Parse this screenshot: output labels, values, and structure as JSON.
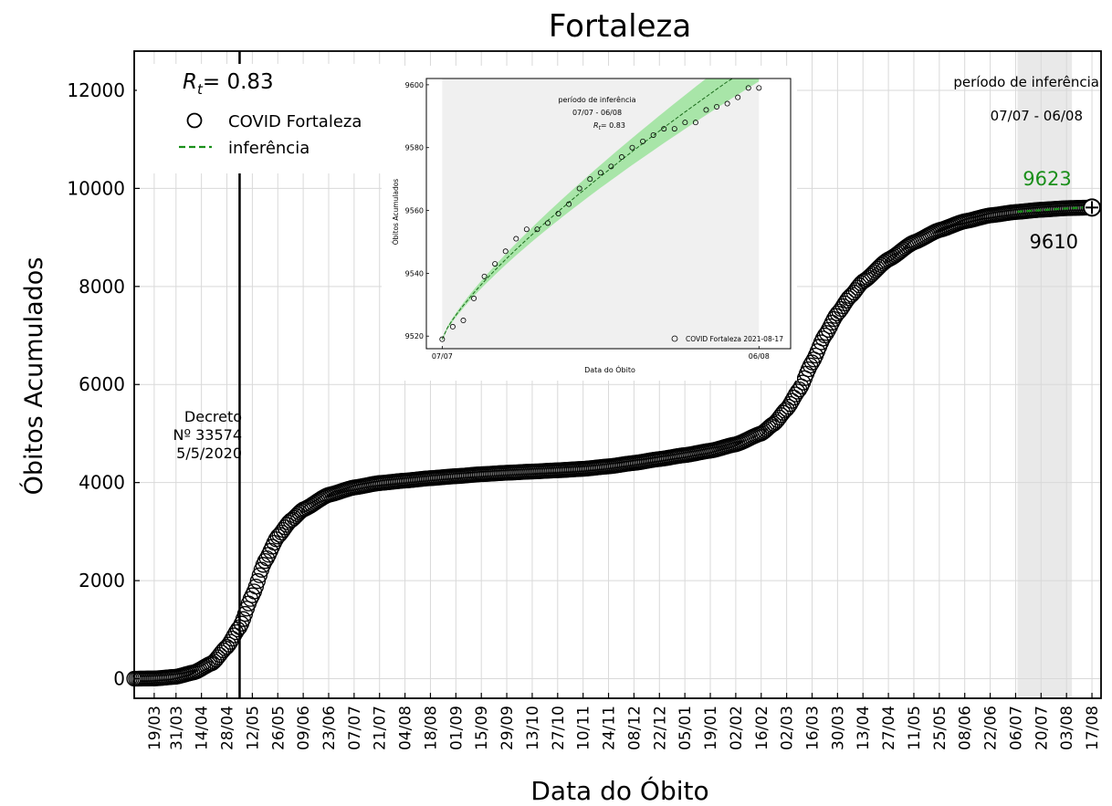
{
  "chart_data": {
    "type": "scatter",
    "title": "Fortaleza",
    "xlabel": "Data do Óbito",
    "ylabel": "Óbitos Acumulados",
    "ylim": [
      -400,
      12800
    ],
    "yticks": [
      0,
      2000,
      4000,
      6000,
      8000,
      10000,
      12000
    ],
    "x_range_days": [
      "2020-03-08",
      "2021-08-22"
    ],
    "xtick_labels": [
      "19/03",
      "31/03",
      "14/04",
      "28/04",
      "12/05",
      "26/05",
      "09/06",
      "23/06",
      "07/07",
      "21/07",
      "04/08",
      "18/08",
      "01/09",
      "15/09",
      "29/09",
      "13/10",
      "27/10",
      "10/11",
      "24/11",
      "08/12",
      "22/12",
      "05/01",
      "19/01",
      "02/02",
      "16/02",
      "02/03",
      "16/03",
      "30/03",
      "13/04",
      "27/04",
      "11/05",
      "25/05",
      "08/06",
      "22/06",
      "06/07",
      "20/07",
      "03/08",
      "17/08"
    ],
    "xtick_dates": [
      "2020-03-19",
      "2020-03-31",
      "2020-04-14",
      "2020-04-28",
      "2020-05-12",
      "2020-05-26",
      "2020-06-09",
      "2020-06-23",
      "2020-07-07",
      "2020-07-21",
      "2020-08-04",
      "2020-08-18",
      "2020-09-01",
      "2020-09-15",
      "2020-09-29",
      "2020-10-13",
      "2020-10-27",
      "2020-11-10",
      "2020-11-24",
      "2020-12-08",
      "2020-12-22",
      "2021-01-05",
      "2021-01-19",
      "2021-02-02",
      "2021-02-16",
      "2021-03-02",
      "2021-03-16",
      "2021-03-30",
      "2021-04-13",
      "2021-04-27",
      "2021-05-11",
      "2021-05-25",
      "2021-06-08",
      "2021-06-22",
      "2021-07-06",
      "2021-07-20",
      "2021-08-03",
      "2021-08-17"
    ],
    "grid": true,
    "legend": {
      "placement": "upper-left",
      "entries": [
        {
          "label": "COVID Fortaleza",
          "marker": "open-circle"
        },
        {
          "label": "inferência",
          "marker": "dashed-line",
          "color": "#1a8f1a"
        }
      ]
    },
    "rt_label_base": "R",
    "rt_label_sub": "t",
    "rt_label_value": "= 0.83",
    "decree": {
      "date": "2020-05-05",
      "lines": [
        "Decreto",
        "Nº 33574",
        "5/5/2020"
      ]
    },
    "inference_period": {
      "start": "2021-07-07",
      "end": "2021-08-06",
      "shade_color": "#e9e9e9",
      "label": "período de inferência",
      "range_label": "07/07 - 06/08"
    },
    "projection_label": "9623",
    "projection_color": "#1a8f1a",
    "last_value_label": "9610",
    "curve_anchors": [
      [
        "2020-03-08",
        0
      ],
      [
        "2020-03-20",
        6
      ],
      [
        "2020-03-31",
        40
      ],
      [
        "2020-04-10",
        130
      ],
      [
        "2020-04-20",
        320
      ],
      [
        "2020-04-28",
        650
      ],
      [
        "2020-05-05",
        1050
      ],
      [
        "2020-05-12",
        1700
      ],
      [
        "2020-05-19",
        2400
      ],
      [
        "2020-05-26",
        2900
      ],
      [
        "2020-06-02",
        3220
      ],
      [
        "2020-06-09",
        3450
      ],
      [
        "2020-06-23",
        3750
      ],
      [
        "2020-07-07",
        3900
      ],
      [
        "2020-07-21",
        3990
      ],
      [
        "2020-08-04",
        4040
      ],
      [
        "2020-08-18",
        4090
      ],
      [
        "2020-09-01",
        4130
      ],
      [
        "2020-09-15",
        4170
      ],
      [
        "2020-09-29",
        4200
      ],
      [
        "2020-10-13",
        4225
      ],
      [
        "2020-10-27",
        4250
      ],
      [
        "2020-11-10",
        4280
      ],
      [
        "2020-11-24",
        4330
      ],
      [
        "2020-12-08",
        4400
      ],
      [
        "2020-12-22",
        4480
      ],
      [
        "2021-01-05",
        4560
      ],
      [
        "2021-01-19",
        4650
      ],
      [
        "2021-02-02",
        4780
      ],
      [
        "2021-02-16",
        5000
      ],
      [
        "2021-02-23",
        5200
      ],
      [
        "2021-03-02",
        5500
      ],
      [
        "2021-03-09",
        5900
      ],
      [
        "2021-03-16",
        6450
      ],
      [
        "2021-03-23",
        7000
      ],
      [
        "2021-03-30",
        7450
      ],
      [
        "2021-04-06",
        7800
      ],
      [
        "2021-04-13",
        8100
      ],
      [
        "2021-04-27",
        8550
      ],
      [
        "2021-05-11",
        8900
      ],
      [
        "2021-05-25",
        9150
      ],
      [
        "2021-06-08",
        9330
      ],
      [
        "2021-06-22",
        9450
      ],
      [
        "2021-07-06",
        9518
      ],
      [
        "2021-07-20",
        9565
      ],
      [
        "2021-08-03",
        9597
      ],
      [
        "2021-08-17",
        9610
      ]
    ],
    "inset": {
      "xlabel": "Data do Óbito",
      "ylabel": "Óbitos Acumulados",
      "yticks": [
        9520,
        9540,
        9560,
        9580,
        9600
      ],
      "ylim": [
        9516,
        9602
      ],
      "xtick_labels": [
        "07/07",
        "06/08"
      ],
      "x_range_day_index": [
        -1.5,
        33
      ],
      "shaded_day_index": [
        0,
        30
      ],
      "shade_color": "#f0f0f0",
      "text_line1": "período de inferência",
      "text_line2": "07/07 - 06/08",
      "rt_text": "= 0.83",
      "legend_label": "COVID Fortaleza 2021-08-17",
      "band_color": "#9be39b",
      "line_color": "#1a6b1a",
      "observed": [
        [
          0,
          9519
        ],
        [
          1,
          9523
        ],
        [
          2,
          9525
        ],
        [
          3,
          9532
        ],
        [
          4,
          9539
        ],
        [
          5,
          9543
        ],
        [
          6,
          9547
        ],
        [
          7,
          9551
        ],
        [
          8,
          9554
        ],
        [
          9,
          9554
        ],
        [
          10,
          9556
        ],
        [
          11,
          9559
        ],
        [
          12,
          9562
        ],
        [
          13,
          9567
        ],
        [
          14,
          9570
        ],
        [
          15,
          9572
        ],
        [
          16,
          9574
        ],
        [
          17,
          9577
        ],
        [
          18,
          9580
        ],
        [
          19,
          9582
        ],
        [
          20,
          9584
        ],
        [
          21,
          9586
        ],
        [
          22,
          9586
        ],
        [
          23,
          9588
        ],
        [
          24,
          9588
        ],
        [
          25,
          9592
        ],
        [
          26,
          9593
        ],
        [
          27,
          9594
        ],
        [
          28,
          9596
        ],
        [
          29,
          9599
        ],
        [
          30,
          9599
        ]
      ],
      "fit_start": 9519,
      "fit_end": 9608
    }
  }
}
